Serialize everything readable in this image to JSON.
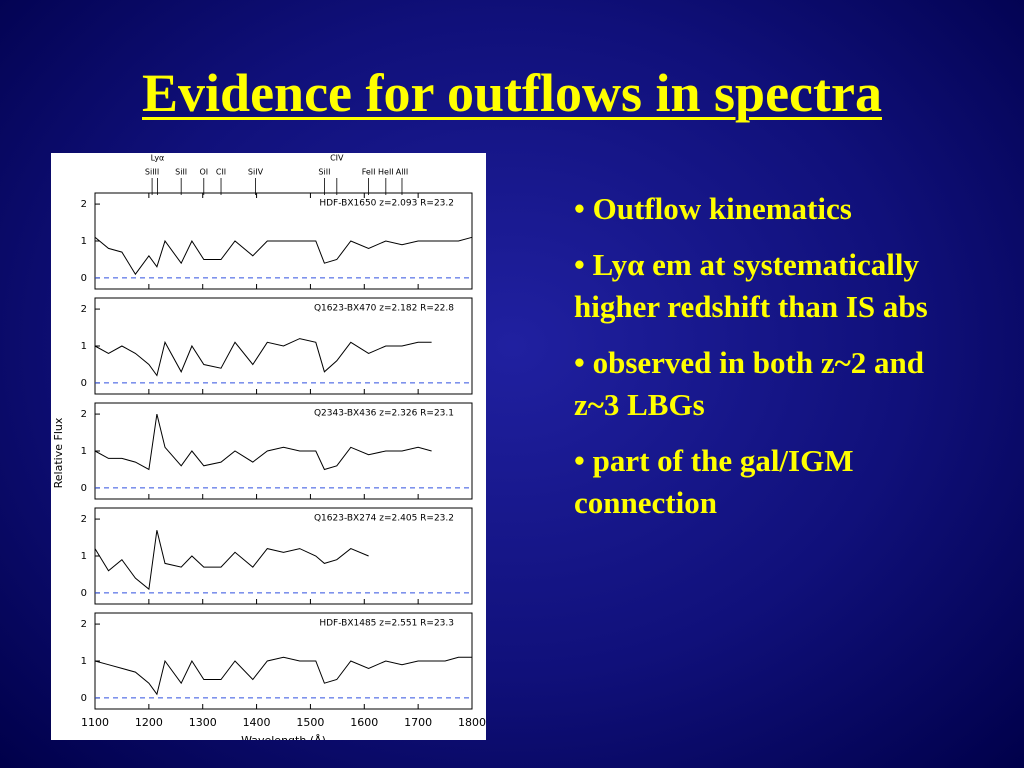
{
  "title": "Evidence for outflows in spectra",
  "bullets": [
    "• Outflow kinematics",
    "• Lyα em at systematically higher redshift than IS abs",
    "• observed in both z~2 and z~3 LBGs",
    "• part of the gal/IGM connection"
  ],
  "chart_data": {
    "type": "line",
    "x_label": "Wavelength (Å)",
    "y_label": "Relative Flux",
    "xlim": [
      1100,
      1800
    ],
    "xticks": [
      1100,
      1200,
      1300,
      1400,
      1500,
      1600,
      1700,
      1800
    ],
    "ylim": [
      -0.3,
      2.3
    ],
    "yticks": [
      0,
      1,
      2
    ],
    "features": [
      {
        "label": "SiIII",
        "x": 1206
      },
      {
        "label": "Lyα",
        "x": 1216
      },
      {
        "label": "SiII",
        "x": 1260
      },
      {
        "label": "OI",
        "x": 1302
      },
      {
        "label": "CII",
        "x": 1334
      },
      {
        "label": "SiIV",
        "x": 1398
      },
      {
        "label": "SiII",
        "x": 1526
      },
      {
        "label": "CIV",
        "x": 1549
      },
      {
        "label": "FeII",
        "x": 1608
      },
      {
        "label": "HeII",
        "x": 1640
      },
      {
        "label": "AlII",
        "x": 1670
      }
    ],
    "x": [
      1100,
      1125,
      1150,
      1175,
      1200,
      1215,
      1230,
      1260,
      1280,
      1302,
      1334,
      1360,
      1393,
      1420,
      1450,
      1480,
      1510,
      1526,
      1549,
      1575,
      1608,
      1640,
      1670,
      1700,
      1725,
      1750,
      1775,
      1800
    ],
    "panels": [
      {
        "name": "HDF-BX1650  z=2.093  R=23.2",
        "values": [
          1.1,
          0.8,
          0.7,
          0.1,
          0.6,
          0.3,
          1.0,
          0.4,
          1.0,
          0.5,
          0.5,
          1.0,
          0.6,
          1.0,
          1.0,
          1.0,
          1.0,
          0.4,
          0.5,
          1.0,
          0.8,
          1.0,
          0.9,
          1.0,
          1.0,
          1.0,
          1.0,
          1.1
        ]
      },
      {
        "name": "Q1623-BX470  z=2.182  R=22.8",
        "values": [
          1.0,
          0.8,
          1.0,
          0.8,
          0.5,
          0.2,
          1.1,
          0.3,
          1.0,
          0.5,
          0.4,
          1.1,
          0.5,
          1.1,
          1.0,
          1.2,
          1.1,
          0.3,
          0.6,
          1.1,
          0.8,
          1.0,
          1.0,
          1.1,
          1.1,
          null,
          null,
          null
        ]
      },
      {
        "name": "Q2343-BX436  z=2.326  R=23.1",
        "values": [
          1.0,
          0.8,
          0.8,
          0.7,
          0.5,
          2.0,
          1.1,
          0.6,
          1.0,
          0.6,
          0.7,
          1.0,
          0.7,
          1.0,
          1.1,
          1.0,
          1.0,
          0.5,
          0.6,
          1.1,
          0.9,
          1.0,
          1.0,
          1.1,
          1.0,
          null,
          null,
          null
        ]
      },
      {
        "name": "Q1623-BX274  z=2.405  R=23.2",
        "values": [
          1.2,
          0.6,
          0.9,
          0.4,
          0.1,
          1.7,
          0.8,
          0.7,
          1.0,
          0.7,
          0.7,
          1.1,
          0.7,
          1.2,
          1.1,
          1.2,
          1.0,
          0.8,
          0.9,
          1.2,
          1.0,
          null,
          null,
          null,
          null,
          null,
          null,
          null
        ]
      },
      {
        "name": "HDF-BX1485  z=2.551  R=23.3",
        "values": [
          1.0,
          0.9,
          0.8,
          0.7,
          0.4,
          0.1,
          1.0,
          0.4,
          1.0,
          0.5,
          0.5,
          1.0,
          0.5,
          1.0,
          1.1,
          1.0,
          1.0,
          0.4,
          0.5,
          1.0,
          0.8,
          1.0,
          0.9,
          1.0,
          1.0,
          1.0,
          1.1,
          1.1
        ]
      }
    ]
  }
}
